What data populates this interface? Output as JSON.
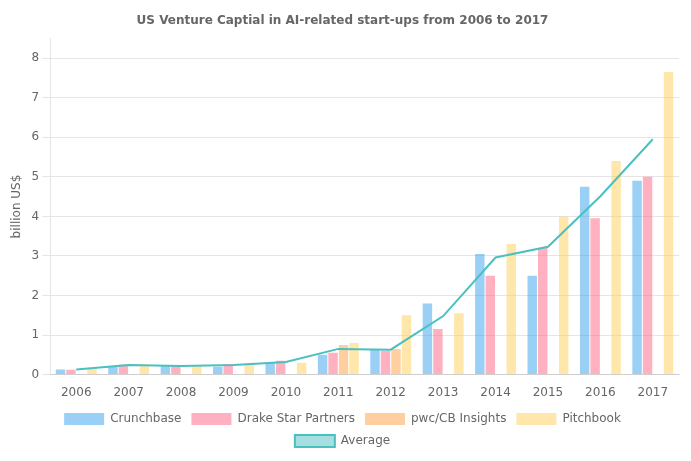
{
  "chart_data": {
    "type": "bar",
    "title": "US Venture Captial in AI-related start-ups from 2006 to 2017",
    "ylabel": "billion US$",
    "categories": [
      "2006",
      "2007",
      "2008",
      "2009",
      "2010",
      "2011",
      "2012",
      "2013",
      "2014",
      "2015",
      "2016",
      "2017"
    ],
    "series": [
      {
        "name": "Crunchbase",
        "values": [
          0.13,
          0.22,
          0.22,
          0.2,
          0.3,
          0.5,
          0.65,
          1.8,
          3.05,
          2.5,
          4.75,
          4.9
        ]
      },
      {
        "name": "Drake Star Partners",
        "values": [
          0.12,
          0.25,
          0.22,
          0.27,
          0.35,
          0.55,
          0.6,
          1.15,
          2.5,
          3.2,
          3.95,
          5.0
        ]
      },
      {
        "name": "pwc/CB Insights",
        "values": [
          0.0,
          0.0,
          0.0,
          0.0,
          0.0,
          0.75,
          0.65,
          0.0,
          0.0,
          0.0,
          0.0,
          0.0
        ]
      },
      {
        "name": "Pitchbook",
        "values": [
          0.15,
          0.25,
          0.22,
          0.25,
          0.3,
          0.8,
          1.5,
          1.55,
          3.3,
          4.0,
          5.4,
          7.65
        ]
      },
      {
        "name": "Average",
        "type": "line",
        "values": [
          0.13,
          0.24,
          0.22,
          0.24,
          0.32,
          0.65,
          0.63,
          1.48,
          2.96,
          3.23,
          4.51,
          5.95
        ]
      }
    ],
    "ylim": [
      0,
      8.5
    ],
    "yticks": [
      0,
      1,
      2,
      3,
      4,
      5,
      6,
      7,
      8
    ],
    "grid": true,
    "legend": "bottom"
  }
}
